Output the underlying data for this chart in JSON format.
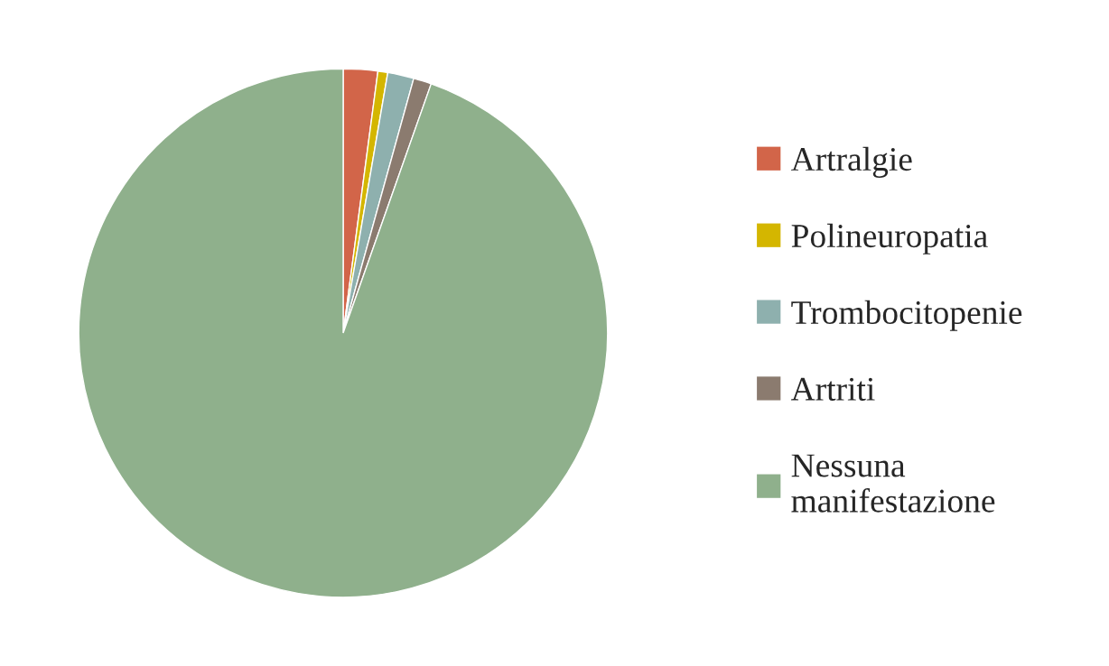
{
  "chart_data": {
    "type": "pie",
    "categories": [
      "Artralgie",
      "Polineuropatia",
      "Trombocitopenie",
      "Artriti",
      "Nessuna manifestazione"
    ],
    "values": [
      2.1,
      0.6,
      1.6,
      1.1,
      94.6
    ],
    "colors": [
      "#d26549",
      "#d4b600",
      "#8eb0ae",
      "#8b7b6f",
      "#8fb08c"
    ],
    "legend": "right"
  }
}
